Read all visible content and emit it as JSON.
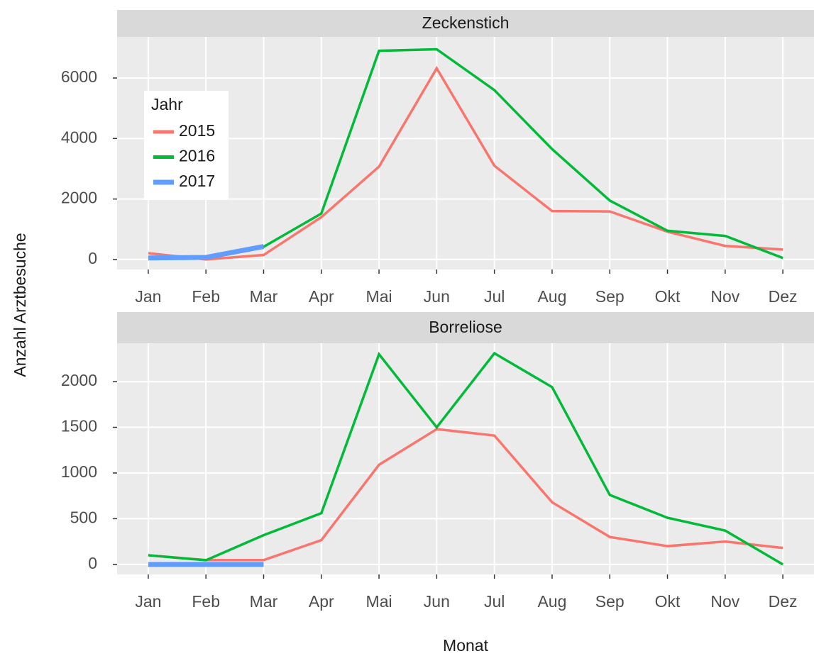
{
  "ylabel": "Anzahl Arztbesuche",
  "xlabel": "Monat",
  "legend": {
    "title": "Jahr",
    "position": "top-left"
  },
  "chart_data": [
    {
      "type": "line",
      "title": "Zeckenstich",
      "categories": [
        "Jan",
        "Feb",
        "Mar",
        "Apr",
        "Mai",
        "Jun",
        "Jul",
        "Aug",
        "Sep",
        "Okt",
        "Nov",
        "Dez"
      ],
      "series": [
        {
          "name": "2015",
          "color": "#F8766D",
          "values": [
            210,
            0,
            150,
            1400,
            3070,
            6320,
            3100,
            1600,
            1590,
            920,
            450,
            330
          ]
        },
        {
          "name": "2016",
          "color": "#00BA38",
          "values": [
            50,
            50,
            420,
            1520,
            6900,
            6950,
            5600,
            3650,
            1950,
            950,
            780,
            50
          ]
        },
        {
          "name": "2017",
          "color": "#619CFF",
          "values": [
            50,
            70,
            430,
            null,
            null,
            null,
            null,
            null,
            null,
            null,
            null,
            null
          ]
        }
      ],
      "ylim": [
        -330,
        7360
      ],
      "yticks": [
        0,
        2000,
        4000,
        6000
      ],
      "grid": true
    },
    {
      "type": "line",
      "title": "Borreliose",
      "categories": [
        "Jan",
        "Feb",
        "Mar",
        "Apr",
        "Mai",
        "Jun",
        "Jul",
        "Aug",
        "Sep",
        "Okt",
        "Nov",
        "Dez"
      ],
      "series": [
        {
          "name": "2015",
          "color": "#F8766D",
          "values": [
            100,
            47,
            47,
            265,
            1090,
            1480,
            1410,
            680,
            300,
            200,
            250,
            180
          ]
        },
        {
          "name": "2016",
          "color": "#00BA38",
          "values": [
            100,
            45,
            320,
            560,
            2300,
            1500,
            2310,
            1940,
            760,
            510,
            370,
            0
          ]
        },
        {
          "name": "2017",
          "color": "#619CFF",
          "values": [
            0,
            0,
            0,
            null,
            null,
            null,
            null,
            null,
            null,
            null,
            null,
            null
          ]
        }
      ],
      "ylim": [
        -110,
        2420
      ],
      "yticks": [
        0,
        500,
        1000,
        1500,
        2000
      ],
      "grid": true
    }
  ]
}
